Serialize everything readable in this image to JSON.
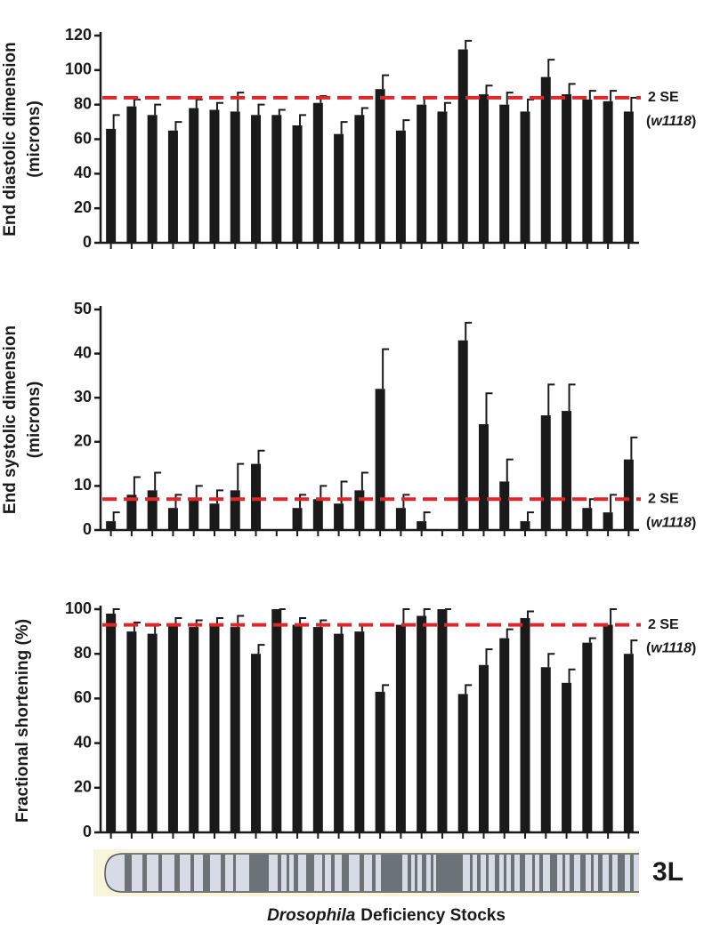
{
  "chart_data": [
    {
      "type": "bar",
      "ylabel": [
        "End diastolic dimension",
        "(microns)"
      ],
      "categories": [
        null,
        null,
        null,
        null,
        null,
        null,
        null,
        null,
        null,
        null,
        null,
        null,
        null,
        null,
        null,
        null,
        null,
        null,
        null,
        null,
        null,
        null,
        null,
        null,
        null,
        null
      ],
      "values": [
        66,
        79,
        74,
        65,
        78,
        77,
        76,
        74,
        74,
        68,
        81,
        63,
        74,
        89,
        65,
        80,
        76,
        112,
        86,
        80,
        76,
        96,
        86,
        83,
        82,
        76
      ],
      "errors": [
        8,
        4,
        6,
        5,
        5,
        4,
        11,
        6,
        3,
        6,
        4,
        7,
        4,
        8,
        6,
        4,
        5,
        5,
        5,
        7,
        7,
        10,
        6,
        5,
        6,
        8
      ],
      "reference_line": 84,
      "ref_label": "2 SE",
      "ref_sublabel": [
        "(",
        "w1118",
        ")"
      ],
      "ylim": [
        0,
        120
      ],
      "yticks": [
        0,
        20,
        40,
        60,
        80,
        100,
        120
      ],
      "color": "#1a1a1a",
      "ref_color": "#e0262b"
    },
    {
      "type": "bar",
      "ylabel": [
        "End systolic dimension",
        "(microns)"
      ],
      "categories": [
        null,
        null,
        null,
        null,
        null,
        null,
        null,
        null,
        null,
        null,
        null,
        null,
        null,
        null,
        null,
        null,
        null,
        null,
        null,
        null,
        null,
        null,
        null,
        null,
        null,
        null
      ],
      "values": [
        2,
        8,
        9,
        5,
        7,
        6,
        9,
        15,
        null,
        5,
        7,
        6,
        9,
        32,
        5,
        2,
        null,
        43,
        24,
        11,
        2,
        26,
        27,
        5,
        4,
        16
      ],
      "errors": [
        2,
        4,
        4,
        3,
        3,
        3,
        6,
        3,
        null,
        3,
        3,
        5,
        4,
        9,
        3,
        2,
        null,
        4,
        7,
        5,
        2,
        7,
        6,
        2,
        4,
        5
      ],
      "reference_line": 7,
      "ref_label": "2 SE",
      "ref_sublabel": [
        "(",
        "w1118",
        ")"
      ],
      "ylim": [
        0,
        50
      ],
      "yticks": [
        0,
        10,
        20,
        30,
        40,
        50
      ],
      "color": "#1a1a1a",
      "ref_color": "#e0262b"
    },
    {
      "type": "bar",
      "ylabel": [
        "Fractional shortening (%)"
      ],
      "categories": [
        null,
        null,
        null,
        null,
        null,
        null,
        null,
        null,
        null,
        null,
        null,
        null,
        null,
        null,
        null,
        null,
        null,
        null,
        null,
        null,
        null,
        null,
        null,
        null,
        null,
        null
      ],
      "values": [
        98,
        90,
        89,
        93,
        92,
        93,
        92,
        80,
        100,
        93,
        92,
        89,
        90,
        63,
        93,
        97,
        100,
        62,
        75,
        87,
        96,
        74,
        67,
        85,
        93,
        80
      ],
      "errors": [
        2,
        4,
        4,
        3,
        3,
        3,
        5,
        4,
        0,
        3,
        3,
        4,
        3,
        3,
        7,
        3,
        0,
        4,
        7,
        4,
        3,
        6,
        6,
        2,
        7,
        6
      ],
      "reference_line": 93,
      "ref_label": "2 SE",
      "ref_sublabel": [
        "(",
        "w1118",
        ")"
      ],
      "ylim": [
        0,
        100
      ],
      "yticks": [
        0,
        20,
        40,
        60,
        80,
        100
      ],
      "color": "#1a1a1a",
      "ref_color": "#e0262b",
      "chromosome_label": "3L",
      "xlabel": [
        "Drosophila",
        "Deficiency Stocks"
      ]
    }
  ]
}
